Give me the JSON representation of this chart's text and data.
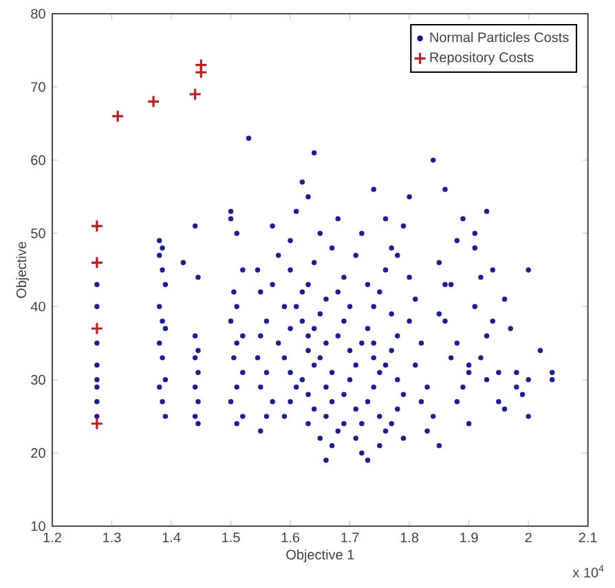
{
  "chart_data": {
    "type": "scatter",
    "xlabel": "Objective 1",
    "ylabel": "Objective",
    "xlim": [
      1.2,
      2.1
    ],
    "ylim": [
      10,
      80
    ],
    "xticks": [
      1.2,
      1.3,
      1.4,
      1.5,
      1.6,
      1.7,
      1.8,
      1.9,
      2,
      2.1
    ],
    "yticks": [
      10,
      20,
      30,
      40,
      50,
      60,
      70,
      80
    ],
    "legend": "top right",
    "grid": false,
    "annotations": [
      "x 10$^{4}$"
    ],
    "series": [
      {
        "name": "Normal Particles Costs",
        "color": "#1c1c8c",
        "marker": "circle",
        "x": [
          1.275,
          1.275,
          1.275,
          1.275,
          1.275,
          1.275,
          1.275,
          1.275,
          1.38,
          1.385,
          1.38,
          1.385,
          1.39,
          1.38,
          1.385,
          1.39,
          1.38,
          1.385,
          1.39,
          1.38,
          1.385,
          1.39,
          1.42,
          1.44,
          1.445,
          1.44,
          1.445,
          1.44,
          1.445,
          1.44,
          1.445,
          1.44,
          1.445,
          1.5,
          1.5,
          1.51,
          1.52,
          1.505,
          1.51,
          1.5,
          1.52,
          1.51,
          1.505,
          1.52,
          1.51,
          1.5,
          1.52,
          1.51,
          1.53,
          1.545,
          1.55,
          1.56,
          1.55,
          1.545,
          1.56,
          1.55,
          1.57,
          1.56,
          1.55,
          1.57,
          1.58,
          1.57,
          1.59,
          1.6,
          1.58,
          1.59,
          1.6,
          1.61,
          1.6,
          1.59,
          1.62,
          1.61,
          1.6,
          1.6,
          1.62,
          1.61,
          1.62,
          1.63,
          1.63,
          1.64,
          1.62,
          1.63,
          1.64,
          1.63,
          1.65,
          1.64,
          1.63,
          1.65,
          1.64,
          1.63,
          1.66,
          1.65,
          1.64,
          1.66,
          1.65,
          1.67,
          1.66,
          1.67,
          1.66,
          1.68,
          1.67,
          1.66,
          1.68,
          1.67,
          1.69,
          1.68,
          1.7,
          1.69,
          1.68,
          1.7,
          1.71,
          1.7,
          1.69,
          1.71,
          1.72,
          1.71,
          1.72,
          1.73,
          1.72,
          1.71,
          1.73,
          1.74,
          1.73,
          1.72,
          1.74,
          1.75,
          1.74,
          1.73,
          1.75,
          1.76,
          1.75,
          1.74,
          1.76,
          1.77,
          1.76,
          1.75,
          1.77,
          1.78,
          1.77,
          1.76,
          1.78,
          1.79,
          1.78,
          1.77,
          1.79,
          1.8,
          1.79,
          1.78,
          1.8,
          1.81,
          1.8,
          1.82,
          1.81,
          1.83,
          1.82,
          1.84,
          1.83,
          1.85,
          1.84,
          1.86,
          1.85,
          1.87,
          1.86,
          1.88,
          1.87,
          1.89,
          1.88,
          1.9,
          1.89,
          1.91,
          1.92,
          1.91,
          1.93,
          1.92,
          1.93,
          1.95,
          1.94,
          1.96,
          1.97,
          1.98,
          1.99,
          2.0,
          2.02,
          2.04,
          2.04,
          1.9,
          1.96,
          2.0,
          1.95,
          1.98,
          2.0,
          1.94,
          1.9,
          1.91,
          1.93,
          1.88,
          1.86,
          1.85,
          1.69,
          1.74
        ],
        "values": [
          43,
          40,
          35,
          32,
          30,
          29,
          27,
          25,
          49,
          48,
          47,
          45,
          43,
          40,
          38,
          37,
          35,
          33,
          30,
          29,
          27,
          25,
          46,
          51,
          44,
          36,
          34,
          33,
          31,
          29,
          27,
          25,
          24,
          53,
          52,
          50,
          45,
          42,
          40,
          38,
          36,
          35,
          33,
          31,
          29,
          27,
          25,
          24,
          63,
          45,
          42,
          38,
          36,
          33,
          31,
          29,
          27,
          25,
          23,
          51,
          47,
          43,
          40,
          37,
          35,
          33,
          31,
          29,
          27,
          25,
          57,
          53,
          49,
          45,
          42,
          40,
          38,
          36,
          34,
          32,
          30,
          28,
          26,
          24,
          22,
          61,
          55,
          50,
          46,
          43,
          41,
          39,
          37,
          35,
          33,
          31,
          29,
          27,
          25,
          23,
          21,
          19,
          52,
          48,
          44,
          42,
          40,
          38,
          36,
          34,
          32,
          30,
          28,
          26,
          24,
          22,
          20,
          19,
          50,
          47,
          43,
          40,
          37,
          35,
          33,
          31,
          29,
          27,
          25,
          23,
          21,
          56,
          52,
          48,
          45,
          42,
          39,
          36,
          34,
          32,
          30,
          28,
          26,
          24,
          22,
          55,
          51,
          47,
          44,
          41,
          38,
          35,
          32,
          29,
          27,
          25,
          23,
          21,
          60,
          56,
          46,
          43,
          38,
          35,
          33,
          29,
          27,
          24,
          52,
          48,
          44,
          40,
          36,
          33,
          30,
          27,
          45,
          41,
          37,
          31,
          28,
          25,
          34,
          31,
          30,
          32,
          26,
          30,
          31,
          29,
          45,
          38,
          31,
          50,
          53,
          49,
          43,
          39,
          24,
          35
        ]
      },
      {
        "name": "Repository Costs",
        "color": "#b22222",
        "marker": "cross",
        "x": [
          1.275,
          1.275,
          1.275,
          1.275,
          1.31,
          1.37,
          1.44,
          1.45,
          1.45
        ],
        "values": [
          24,
          37,
          46,
          51,
          66,
          68,
          69,
          72,
          73
        ]
      }
    ]
  }
}
